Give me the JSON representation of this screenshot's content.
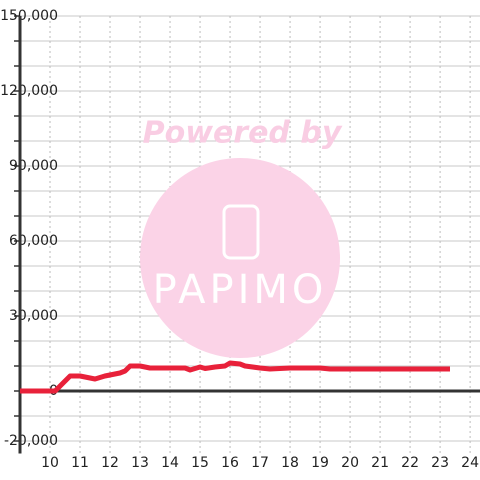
{
  "chart_data": {
    "type": "line",
    "watermark_top": "Powered by",
    "watermark_logo": "PAPIMO",
    "x": [
      9.0,
      10.17,
      10.67,
      11.0,
      11.5,
      11.83,
      12.33,
      12.5,
      12.67,
      13.0,
      13.33,
      14.0,
      14.5,
      14.67,
      15.0,
      15.17,
      15.5,
      15.83,
      16.0,
      16.33,
      16.5,
      17.0,
      17.33,
      18.0,
      19.0,
      19.33,
      23.33
    ],
    "series": [
      {
        "color": "#e8213a",
        "values": [
          0,
          0,
          6000,
          6000,
          4800,
          6000,
          7200,
          8000,
          10000,
          10000,
          9200,
          9200,
          9200,
          8400,
          9600,
          9000,
          9600,
          10000,
          11200,
          10800,
          10000,
          9200,
          8800,
          9200,
          9200,
          8800,
          8800
        ]
      }
    ],
    "xlim": [
      9.0,
      24.33
    ],
    "xticks": [
      10,
      11,
      12,
      13,
      14,
      15,
      16,
      17,
      18,
      19,
      20,
      21,
      22,
      23,
      24
    ],
    "ylim": [
      -25000,
      150000
    ],
    "yticks": [
      {
        "value": -20000,
        "label": "-20,000"
      },
      0,
      {
        "value": 30000,
        "label": "30,000"
      },
      {
        "value": 60000,
        "label": "60,000"
      },
      {
        "value": 90000,
        "label": "90,000"
      },
      {
        "value": 120000,
        "label": "120,000"
      },
      {
        "value": 150000,
        "label": "150,000"
      }
    ],
    "y_minor_ticks": [
      -20000,
      -10000,
      0,
      10000,
      20000,
      30000,
      40000,
      50000,
      60000,
      70000,
      80000,
      90000,
      100000,
      110000,
      120000,
      130000,
      140000,
      150000
    ],
    "grid": true
  }
}
